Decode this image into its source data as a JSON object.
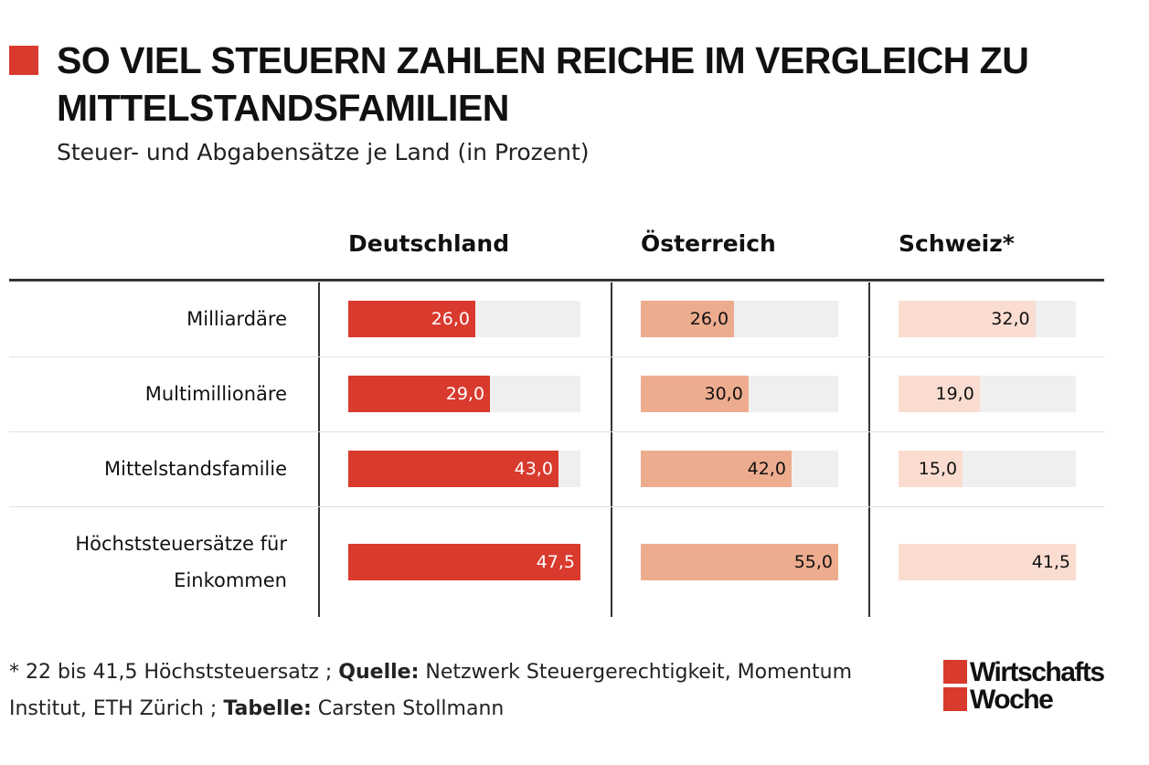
{
  "chart_data": {
    "type": "bar",
    "title": "SO VIEL STEUERN ZAHLEN REICHE IM VERGLEICH ZU MITTELSTANDSFAMILIEN",
    "subtitle": "Steuer- und Abgabensätze je Land (in Prozent)",
    "categories": [
      "Milliardäre",
      "Multimillionäre",
      "Mittelstandsfamilie",
      "Höchststeuersätze für Einkommen"
    ],
    "series": [
      {
        "name": "Deutschland",
        "color": "#d93a2e",
        "values": [
          26,
          29,
          43,
          47.5
        ],
        "value_labels": [
          "26,0",
          "29,0",
          "43,0",
          "47,5"
        ]
      },
      {
        "name": "Österreich",
        "color": "#eeac8f",
        "values": [
          26,
          30,
          42,
          55
        ],
        "value_labels": [
          "26,0",
          "30,0",
          "42,0",
          "55,0"
        ]
      },
      {
        "name": "Schweiz*",
        "color": "#fbdcd0",
        "values": [
          32,
          19,
          15,
          41.5
        ],
        "value_labels": [
          "32,0",
          "19,0",
          "15,0",
          "41,5"
        ]
      }
    ]
  },
  "footnote": {
    "note": "* 22 bis 41,5 Höchststeuersatz ; ",
    "source_label": "Quelle:",
    "source": " Netzwerk Steuergerechtigkeit, Momentum Institut, ETH Zürich ; ",
    "author_label": "Tabelle:",
    "author": " Carsten Stollmann"
  },
  "logo": [
    "Wirtschafts",
    "Woche"
  ]
}
